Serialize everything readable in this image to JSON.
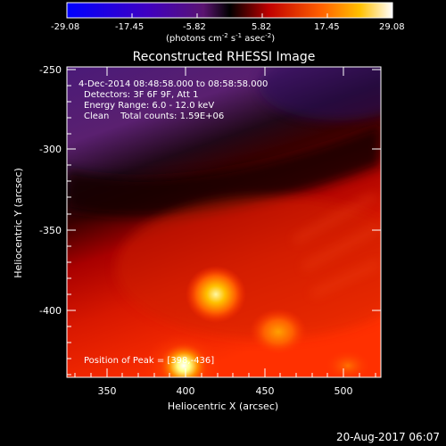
{
  "colorbar": {
    "ticks": [
      "-29.08",
      "-17.45",
      "-5.82",
      "5.82",
      "17.45",
      "29.08"
    ],
    "unit_main": "(photons cm",
    "unit_sup1": "-2",
    "unit_mid": " s",
    "unit_sup2": "-1",
    "unit_end": " asec",
    "unit_sup3": "-2",
    "unit_close": ")"
  },
  "title": "Reconstructed RHESSI Image",
  "info": {
    "time": "4-Dec-2014 08:48:58.000 to 08:58:58.000",
    "detectors": "Detectors: 3F 6F 9F, Att 1",
    "energy": "Energy Range: 6.0 - 12.0 keV",
    "clean": "Clean    Total counts: 1.59E+06",
    "peak": "Position of Peak = [398,-436]"
  },
  "axes": {
    "xlabel": "Heliocentric X (arcsec)",
    "ylabel": "Heliocentric Y (arcsec)",
    "xticks": [
      "350",
      "400",
      "450",
      "500"
    ],
    "yticks": [
      "-250",
      "-300",
      "-350",
      "-400"
    ]
  },
  "footer": {
    "date": "20-Aug-2017 06:07"
  },
  "colors": {
    "bg": "#000000",
    "axis": "#ffffff",
    "sources": [
      "#ffffff",
      "#ffee66",
      "#ff8800"
    ]
  }
}
